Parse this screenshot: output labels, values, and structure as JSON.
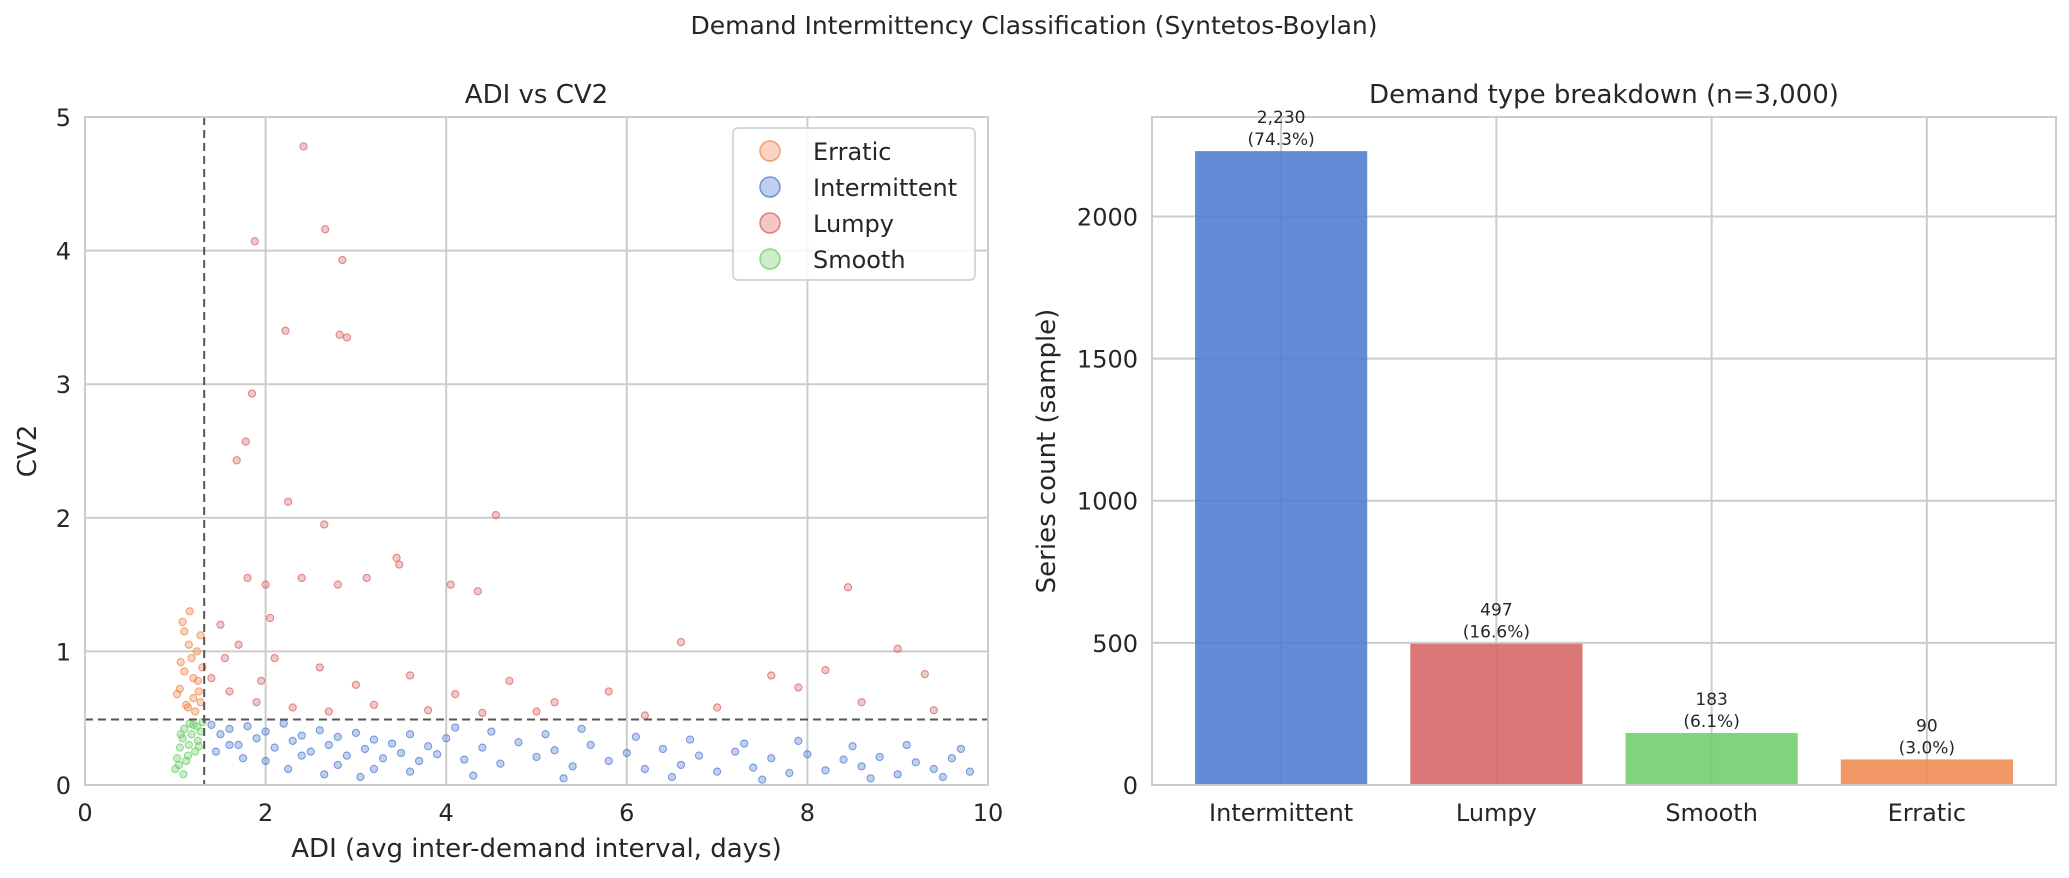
{
  "figure": {
    "suptitle": "Demand Intermittency Classification (Syntetos-Boylan)"
  },
  "colors": {
    "Erratic": "#ee854a",
    "Intermittent": "#4878d0",
    "Lumpy": "#d65f5f",
    "Smooth": "#6acc64",
    "grid": "#cccccc",
    "threshold": "#555555"
  },
  "chart_data": [
    {
      "type": "scatter",
      "title": "ADI vs CV2",
      "xlabel": "ADI (avg inter-demand interval, days)",
      "ylabel": "CV2",
      "xlim": [
        0,
        10
      ],
      "ylim": [
        0,
        5
      ],
      "xticks": [
        0,
        2,
        4,
        6,
        8,
        10
      ],
      "yticks": [
        0,
        1,
        2,
        3,
        4,
        5
      ],
      "grid": true,
      "legend_position": "top-right",
      "thresholds": {
        "adi": 1.32,
        "cv2": 0.49
      },
      "series": [
        {
          "name": "Erratic",
          "points": [
            [
              1.05,
              0.72
            ],
            [
              1.1,
              0.85
            ],
            [
              1.15,
              1.05
            ],
            [
              1.2,
              0.65
            ],
            [
              1.25,
              0.78
            ],
            [
              1.08,
              1.22
            ],
            [
              1.18,
              0.95
            ],
            [
              1.28,
              1.12
            ],
            [
              1.12,
              0.6
            ],
            [
              1.22,
              0.55
            ],
            [
              1.3,
              0.88
            ],
            [
              1.02,
              0.68
            ],
            [
              1.16,
              1.3
            ],
            [
              1.26,
              0.7
            ],
            [
              1.06,
              0.92
            ],
            [
              1.24,
              1.0
            ],
            [
              1.14,
              0.58
            ],
            [
              1.2,
              0.8
            ],
            [
              1.28,
              0.62
            ],
            [
              1.1,
              1.15
            ]
          ]
        },
        {
          "name": "Intermittent",
          "points": [
            [
              1.4,
              0.45
            ],
            [
              1.5,
              0.38
            ],
            [
              1.6,
              0.42
            ],
            [
              1.7,
              0.3
            ],
            [
              1.8,
              0.44
            ],
            [
              1.9,
              0.35
            ],
            [
              2.0,
              0.4
            ],
            [
              2.1,
              0.28
            ],
            [
              2.2,
              0.46
            ],
            [
              2.3,
              0.33
            ],
            [
              2.4,
              0.37
            ],
            [
              2.5,
              0.25
            ],
            [
              2.6,
              0.41
            ],
            [
              2.7,
              0.3
            ],
            [
              2.8,
              0.36
            ],
            [
              2.9,
              0.22
            ],
            [
              3.0,
              0.39
            ],
            [
              3.1,
              0.27
            ],
            [
              3.2,
              0.34
            ],
            [
              3.3,
              0.2
            ],
            [
              3.4,
              0.31
            ],
            [
              3.5,
              0.24
            ],
            [
              3.6,
              0.38
            ],
            [
              3.7,
              0.18
            ],
            [
              3.8,
              0.29
            ],
            [
              3.9,
              0.23
            ],
            [
              4.0,
              0.35
            ],
            [
              4.2,
              0.19
            ],
            [
              4.4,
              0.28
            ],
            [
              4.6,
              0.16
            ],
            [
              4.8,
              0.32
            ],
            [
              5.0,
              0.21
            ],
            [
              5.2,
              0.26
            ],
            [
              5.4,
              0.14
            ],
            [
              5.6,
              0.3
            ],
            [
              5.8,
              0.18
            ],
            [
              6.0,
              0.24
            ],
            [
              6.2,
              0.12
            ],
            [
              6.4,
              0.27
            ],
            [
              6.6,
              0.15
            ],
            [
              6.8,
              0.22
            ],
            [
              7.0,
              0.1
            ],
            [
              7.2,
              0.25
            ],
            [
              7.4,
              0.13
            ],
            [
              7.6,
              0.2
            ],
            [
              7.8,
              0.09
            ],
            [
              8.0,
              0.23
            ],
            [
              8.2,
              0.11
            ],
            [
              8.4,
              0.19
            ],
            [
              8.6,
              0.14
            ],
            [
              8.8,
              0.21
            ],
            [
              9.0,
              0.08
            ],
            [
              9.2,
              0.17
            ],
            [
              9.4,
              0.12
            ],
            [
              9.6,
              0.2
            ],
            [
              9.8,
              0.1
            ],
            [
              1.6,
              0.3
            ],
            [
              2.0,
              0.18
            ],
            [
              2.4,
              0.22
            ],
            [
              2.8,
              0.15
            ],
            [
              3.2,
              0.12
            ],
            [
              3.6,
              0.1
            ],
            [
              4.1,
              0.43
            ],
            [
              4.5,
              0.4
            ],
            [
              5.1,
              0.38
            ],
            [
              5.5,
              0.42
            ],
            [
              6.1,
              0.36
            ],
            [
              6.7,
              0.34
            ],
            [
              7.3,
              0.31
            ],
            [
              7.9,
              0.33
            ],
            [
              8.5,
              0.29
            ],
            [
              9.1,
              0.3
            ],
            [
              9.7,
              0.27
            ],
            [
              1.45,
              0.25
            ],
            [
              1.75,
              0.2
            ],
            [
              2.25,
              0.12
            ],
            [
              2.65,
              0.08
            ],
            [
              3.05,
              0.06
            ],
            [
              4.3,
              0.07
            ],
            [
              5.3,
              0.05
            ],
            [
              6.5,
              0.06
            ],
            [
              7.5,
              0.04
            ],
            [
              8.7,
              0.05
            ],
            [
              9.5,
              0.06
            ]
          ]
        },
        {
          "name": "Lumpy",
          "points": [
            [
              2.42,
              4.78
            ],
            [
              1.88,
              4.07
            ],
            [
              2.66,
              4.16
            ],
            [
              2.85,
              3.93
            ],
            [
              2.22,
              3.4
            ],
            [
              2.82,
              3.37
            ],
            [
              2.9,
              3.35
            ],
            [
              1.85,
              2.93
            ],
            [
              1.78,
              2.57
            ],
            [
              1.68,
              2.43
            ],
            [
              2.25,
              2.12
            ],
            [
              2.65,
              1.95
            ],
            [
              4.55,
              2.02
            ],
            [
              1.8,
              1.55
            ],
            [
              2.0,
              1.5
            ],
            [
              2.4,
              1.55
            ],
            [
              2.8,
              1.5
            ],
            [
              3.12,
              1.55
            ],
            [
              3.45,
              1.7
            ],
            [
              3.48,
              1.65
            ],
            [
              4.05,
              1.5
            ],
            [
              4.35,
              1.45
            ],
            [
              8.45,
              1.48
            ],
            [
              1.5,
              1.2
            ],
            [
              1.7,
              1.05
            ],
            [
              2.1,
              0.95
            ],
            [
              2.6,
              0.88
            ],
            [
              3.0,
              0.75
            ],
            [
              3.6,
              0.82
            ],
            [
              4.1,
              0.68
            ],
            [
              4.7,
              0.78
            ],
            [
              5.2,
              0.62
            ],
            [
              5.8,
              0.7
            ],
            [
              6.6,
              1.07
            ],
            [
              7.6,
              0.82
            ],
            [
              7.9,
              0.73
            ],
            [
              8.2,
              0.86
            ],
            [
              9.0,
              1.02
            ],
            [
              9.3,
              0.83
            ],
            [
              1.6,
              0.7
            ],
            [
              1.9,
              0.62
            ],
            [
              2.3,
              0.58
            ],
            [
              2.7,
              0.55
            ],
            [
              3.2,
              0.6
            ],
            [
              3.8,
              0.56
            ],
            [
              4.4,
              0.54
            ],
            [
              5.0,
              0.55
            ],
            [
              6.2,
              0.52
            ],
            [
              7.0,
              0.58
            ],
            [
              8.6,
              0.62
            ],
            [
              9.4,
              0.56
            ],
            [
              1.4,
              0.8
            ],
            [
              1.55,
              0.95
            ],
            [
              2.05,
              1.25
            ],
            [
              1.95,
              0.78
            ]
          ]
        },
        {
          "name": "Smooth",
          "points": [
            [
              1.0,
              0.12
            ],
            [
              1.02,
              0.2
            ],
            [
              1.05,
              0.28
            ],
            [
              1.08,
              0.35
            ],
            [
              1.1,
              0.42
            ],
            [
              1.12,
              0.18
            ],
            [
              1.15,
              0.3
            ],
            [
              1.18,
              0.38
            ],
            [
              1.2,
              0.45
            ],
            [
              1.22,
              0.25
            ],
            [
              1.25,
              0.33
            ],
            [
              1.28,
              0.4
            ],
            [
              1.3,
              0.47
            ],
            [
              1.04,
              0.15
            ],
            [
              1.14,
              0.22
            ],
            [
              1.24,
              0.44
            ],
            [
              1.06,
              0.38
            ],
            [
              1.16,
              0.46
            ],
            [
              1.26,
              0.29
            ],
            [
              1.09,
              0.08
            ]
          ]
        }
      ]
    },
    {
      "type": "bar",
      "title": "Demand type breakdown  (n=3,000)",
      "xlabel": "",
      "ylabel": "Series count (sample)",
      "categories": [
        "Intermittent",
        "Lumpy",
        "Smooth",
        "Erratic"
      ],
      "values": [
        2230,
        497,
        183,
        90
      ],
      "data_labels": [
        [
          "2,230",
          "(74.3%)"
        ],
        [
          "497",
          "(16.6%)"
        ],
        [
          "183",
          "(6.1%)"
        ],
        [
          "90",
          "(3.0%)"
        ]
      ],
      "ylim": [
        0,
        2350
      ],
      "yticks": [
        0,
        500,
        1000,
        1500,
        2000
      ],
      "grid": true
    }
  ]
}
